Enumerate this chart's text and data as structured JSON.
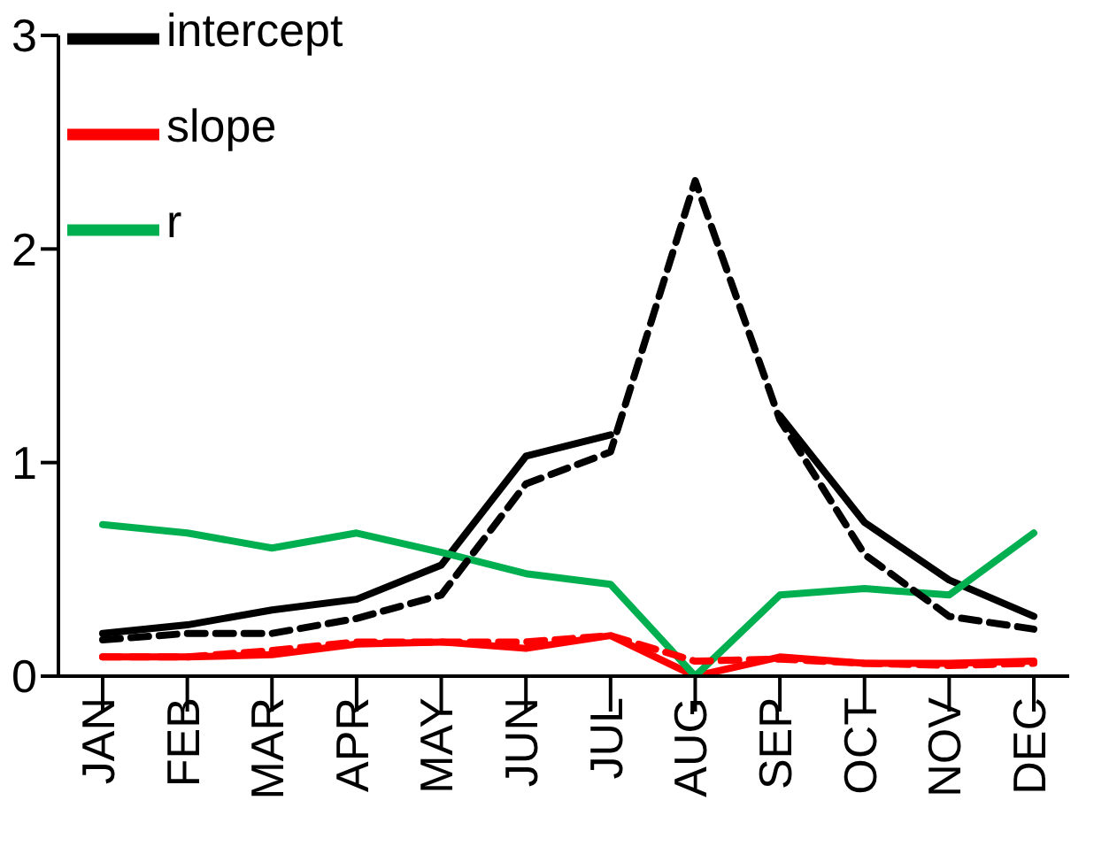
{
  "chart_data": {
    "type": "line",
    "categories": [
      "JAN",
      "FEB",
      "MAR",
      "APR",
      "MAY",
      "JUN",
      "JUL",
      "AUG",
      "SEP",
      "OCT",
      "NOV",
      "DEC"
    ],
    "series": [
      {
        "name": "intercept",
        "color": "#000000",
        "values": [
          0.2,
          0.24,
          0.31,
          0.36,
          0.52,
          1.03,
          1.13,
          null,
          1.22,
          0.72,
          0.45,
          0.28
        ]
      },
      {
        "name": "slope",
        "color": "#ff0000",
        "values": [
          0.09,
          0.09,
          0.1,
          0.15,
          0.16,
          0.13,
          0.19,
          0,
          0.09,
          0.06,
          0.06,
          0.07
        ]
      },
      {
        "name": "r",
        "color": "#00b050",
        "values": [
          0.71,
          0.67,
          0.6,
          0.67,
          0.58,
          0.48,
          0.43,
          0,
          0.38,
          0.41,
          0.38,
          0.67
        ]
      },
      {
        "color": "#000000",
        "line_style": "dashed",
        "values": [
          0.17,
          0.2,
          0.2,
          0.27,
          0.38,
          0.9,
          1.05,
          2.32,
          1.2,
          0.57,
          0.28,
          0.22
        ]
      },
      {
        "color": "#ff0000",
        "line_style": "dashed",
        "values": [
          0.09,
          0.09,
          0.12,
          0.16,
          0.16,
          0.16,
          0.19,
          0.07,
          0.08,
          0.06,
          0.05,
          0.06
        ]
      }
    ],
    "ylim": [
      0,
      3
    ],
    "yticks": [
      0,
      1,
      2,
      3
    ],
    "grid": false,
    "legend": "top left",
    "marker": "none",
    "line_style": "solid"
  }
}
